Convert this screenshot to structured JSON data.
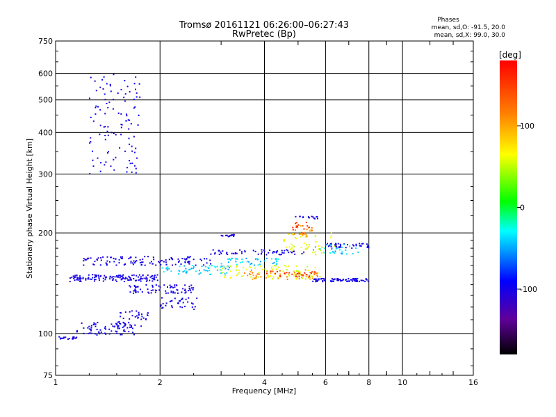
{
  "chart_data": {
    "type": "scatter",
    "title": "Tromsø 20161121 06:26:00–06:27:43",
    "subtitle": "RwPretec (Bp)",
    "xlabel": "Frequency [MHz]",
    "ylabel": "Stationary phase Virtual Height [km]",
    "x_scale": "log2",
    "y_scale": "log",
    "xlim": [
      1,
      16
    ],
    "ylim": [
      75,
      750
    ],
    "x_ticks": [
      1,
      2,
      4,
      6,
      8,
      10,
      16
    ],
    "x_tick_labels": [
      "1",
      "2",
      "4",
      "6",
      "8",
      "10",
      "16"
    ],
    "y_ticks": [
      75,
      100,
      200,
      300,
      400,
      500,
      600,
      750
    ],
    "y_tick_labels": [
      "75",
      "100",
      "200",
      "300",
      "400",
      "500",
      "600",
      "750"
    ],
    "grid": true,
    "phase_info": {
      "heading": "Phases",
      "line_o": "mean, sd,O: -91.5, 20.0",
      "line_x": "mean, sd,X:  99.0, 30.0"
    },
    "colorbar": {
      "label": "[deg]",
      "range": [
        -180,
        180
      ],
      "ticks": [
        100,
        0,
        -100
      ],
      "tick_labels": [
        "100",
        "0",
        "-100"
      ]
    },
    "series": [
      {
        "color_phase": "-100",
        "traces": [
          {
            "f": [
              1.0,
              1.15
            ],
            "h": [
              96,
              98
            ],
            "n": 20
          },
          {
            "f": [
              1.15,
              1.7
            ],
            "h": [
              99,
              108
            ],
            "n": 70
          },
          {
            "f": [
              1.5,
              1.85
            ],
            "h": [
              105,
              118
            ],
            "n": 40
          },
          {
            "f": [
              1.25,
              1.75
            ],
            "h": [
              300,
              600
            ],
            "n": 110
          },
          {
            "f": [
              1.1,
              2.0
            ],
            "h": [
              143,
              150
            ],
            "n": 140
          },
          {
            "f": [
              1.2,
              2.8
            ],
            "h": [
              160,
              170
            ],
            "n": 120
          },
          {
            "f": [
              1.6,
              2.5
            ],
            "h": [
              132,
              140
            ],
            "n": 80
          },
          {
            "f": [
              2.0,
              2.6
            ],
            "h": [
              118,
              128
            ],
            "n": 35
          },
          {
            "f": [
              3.0,
              3.3
            ],
            "h": [
              195,
              198
            ],
            "n": 20
          },
          {
            "f": [
              2.8,
              5.2
            ],
            "h": [
              172,
              178
            ],
            "n": 60
          },
          {
            "f": [
              5.5,
              8.0
            ],
            "h": [
              143,
              146
            ],
            "n": 80
          },
          {
            "f": [
              6.0,
              8.0
            ],
            "h": [
              180,
              186
            ],
            "n": 40
          },
          {
            "f": [
              4.8,
              5.8
            ],
            "h": [
              220,
              224
            ],
            "n": 15
          }
        ]
      },
      {
        "color_phase": "-40",
        "traces": [
          {
            "f": [
              2.0,
              3.2
            ],
            "h": [
              150,
              160
            ],
            "n": 60
          },
          {
            "f": [
              3.0,
              4.4
            ],
            "h": [
              160,
              168
            ],
            "n": 40
          },
          {
            "f": [
              5.5,
              7.5
            ],
            "h": [
              173,
              185
            ],
            "n": 30
          }
        ]
      },
      {
        "color_phase": "60",
        "traces": [
          {
            "f": [
              3.0,
              5.8
            ],
            "h": [
              145,
              160
            ],
            "n": 90
          },
          {
            "f": [
              4.5,
              6.5
            ],
            "h": [
              172,
              200
            ],
            "n": 45
          }
        ]
      },
      {
        "color_phase": "110",
        "traces": [
          {
            "f": [
              3.5,
              5.8
            ],
            "h": [
              145,
              155
            ],
            "n": 50
          },
          {
            "f": [
              4.8,
              5.5
            ],
            "h": [
              195,
              210
            ],
            "n": 25
          }
        ]
      },
      {
        "color_phase": "160",
        "traces": [
          {
            "f": [
              4.0,
              5.6
            ],
            "h": [
              148,
              154
            ],
            "n": 25
          },
          {
            "f": [
              4.8,
              5.4
            ],
            "h": [
              200,
              215
            ],
            "n": 12
          }
        ]
      }
    ]
  }
}
